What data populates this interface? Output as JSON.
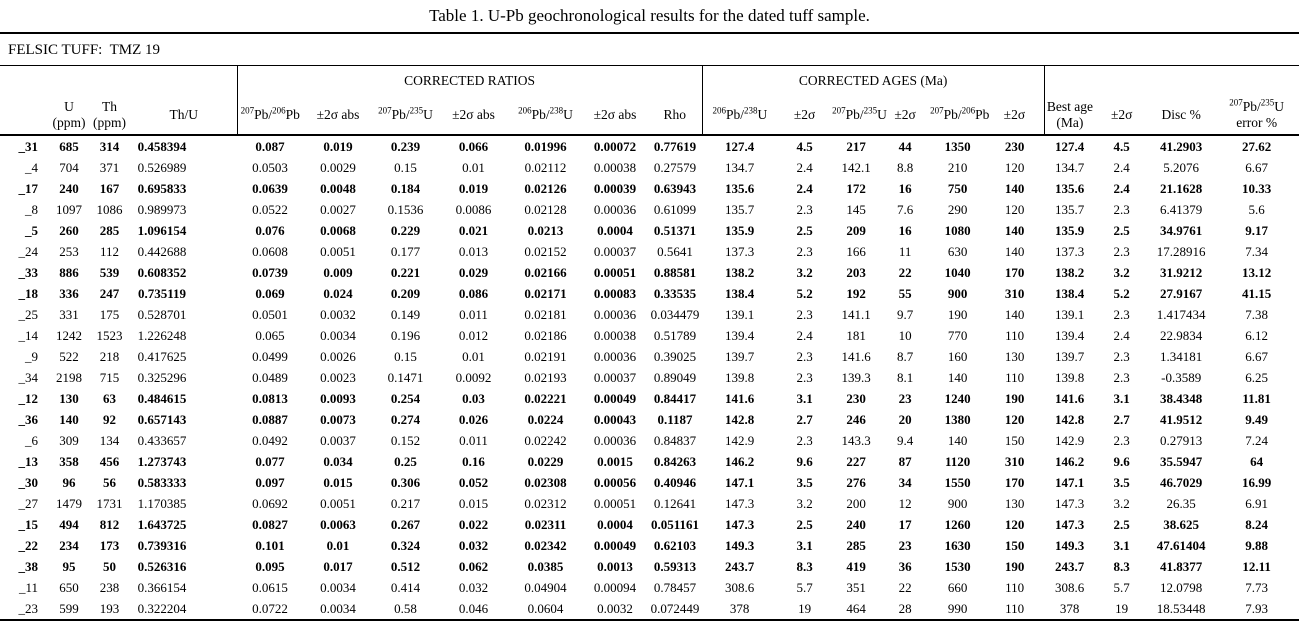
{
  "title": "Table 1. U-Pb geochronological results for the dated tuff sample.",
  "subtitle": "FELSIC TUFF:  TMZ 19",
  "table": {
    "group_headers": {
      "ratios": "CORRECTED RATIOS",
      "ages": "CORRECTED AGES (Ma)"
    },
    "columns": [
      "",
      "U (ppm)",
      "Th (ppm)",
      "Th/U",
      "^{207}Pb/^{206}Pb",
      "±2σ abs",
      "^{207}Pb/^{235}U",
      "±2σ abs",
      "^{206}Pb/^{238}U",
      "±2σ abs",
      "Rho",
      "^{206}Pb/^{238}U",
      "±2σ",
      "^{207}Pb/^{235}U",
      "±2σ",
      "^{207}Pb/^{206}Pb",
      "±2σ",
      "Best age\n(Ma)",
      "±2σ",
      "Disc %",
      "^{207}Pb/^{235}U\nerror %"
    ],
    "rows": [
      {
        "id": "_31",
        "bold": true,
        "values": [
          "685",
          "314",
          "0.458394",
          "0.087",
          "0.019",
          "0.239",
          "0.066",
          "0.01996",
          "0.00072",
          "0.77619",
          "127.4",
          "4.5",
          "217",
          "44",
          "1350",
          "230",
          "127.4",
          "4.5",
          "41.2903",
          "27.62"
        ]
      },
      {
        "id": "_4",
        "bold": false,
        "values": [
          "704",
          "371",
          "0.526989",
          "0.0503",
          "0.0029",
          "0.15",
          "0.01",
          "0.02112",
          "0.00038",
          "0.27579",
          "134.7",
          "2.4",
          "142.1",
          "8.8",
          "210",
          "120",
          "134.7",
          "2.4",
          "5.2076",
          "6.67"
        ]
      },
      {
        "id": "_17",
        "bold": true,
        "values": [
          "240",
          "167",
          "0.695833",
          "0.0639",
          "0.0048",
          "0.184",
          "0.019",
          "0.02126",
          "0.00039",
          "0.63943",
          "135.6",
          "2.4",
          "172",
          "16",
          "750",
          "140",
          "135.6",
          "2.4",
          "21.1628",
          "10.33"
        ]
      },
      {
        "id": "_8",
        "bold": false,
        "values": [
          "1097",
          "1086",
          "0.989973",
          "0.0522",
          "0.0027",
          "0.1536",
          "0.0086",
          "0.02128",
          "0.00036",
          "0.61099",
          "135.7",
          "2.3",
          "145",
          "7.6",
          "290",
          "120",
          "135.7",
          "2.3",
          "6.41379",
          "5.6"
        ]
      },
      {
        "id": "_5",
        "bold": true,
        "values": [
          "260",
          "285",
          "1.096154",
          "0.076",
          "0.0068",
          "0.229",
          "0.021",
          "0.0213",
          "0.0004",
          "0.51371",
          "135.9",
          "2.5",
          "209",
          "16",
          "1080",
          "140",
          "135.9",
          "2.5",
          "34.9761",
          "9.17"
        ]
      },
      {
        "id": "_24",
        "bold": false,
        "values": [
          "253",
          "112",
          "0.442688",
          "0.0608",
          "0.0051",
          "0.177",
          "0.013",
          "0.02152",
          "0.00037",
          "0.5641",
          "137.3",
          "2.3",
          "166",
          "11",
          "630",
          "140",
          "137.3",
          "2.3",
          "17.28916",
          "7.34"
        ]
      },
      {
        "id": "_33",
        "bold": true,
        "values": [
          "886",
          "539",
          "0.608352",
          "0.0739",
          "0.009",
          "0.221",
          "0.029",
          "0.02166",
          "0.00051",
          "0.88581",
          "138.2",
          "3.2",
          "203",
          "22",
          "1040",
          "170",
          "138.2",
          "3.2",
          "31.9212",
          "13.12"
        ]
      },
      {
        "id": "_18",
        "bold": true,
        "values": [
          "336",
          "247",
          "0.735119",
          "0.069",
          "0.024",
          "0.209",
          "0.086",
          "0.02171",
          "0.00083",
          "0.33535",
          "138.4",
          "5.2",
          "192",
          "55",
          "900",
          "310",
          "138.4",
          "5.2",
          "27.9167",
          "41.15"
        ]
      },
      {
        "id": "_25",
        "bold": false,
        "values": [
          "331",
          "175",
          "0.528701",
          "0.0501",
          "0.0032",
          "0.149",
          "0.011",
          "0.02181",
          "0.00036",
          "0.034479",
          "139.1",
          "2.3",
          "141.1",
          "9.7",
          "190",
          "140",
          "139.1",
          "2.3",
          "1.417434",
          "7.38"
        ]
      },
      {
        "id": "_14",
        "bold": false,
        "values": [
          "1242",
          "1523",
          "1.226248",
          "0.065",
          "0.0034",
          "0.196",
          "0.012",
          "0.02186",
          "0.00038",
          "0.51789",
          "139.4",
          "2.4",
          "181",
          "10",
          "770",
          "110",
          "139.4",
          "2.4",
          "22.9834",
          "6.12"
        ]
      },
      {
        "id": "_9",
        "bold": false,
        "values": [
          "522",
          "218",
          "0.417625",
          "0.0499",
          "0.0026",
          "0.15",
          "0.01",
          "0.02191",
          "0.00036",
          "0.39025",
          "139.7",
          "2.3",
          "141.6",
          "8.7",
          "160",
          "130",
          "139.7",
          "2.3",
          "1.34181",
          "6.67"
        ]
      },
      {
        "id": "_34",
        "bold": false,
        "values": [
          "2198",
          "715",
          "0.325296",
          "0.0489",
          "0.0023",
          "0.1471",
          "0.0092",
          "0.02193",
          "0.00037",
          "0.89049",
          "139.8",
          "2.3",
          "139.3",
          "8.1",
          "140",
          "110",
          "139.8",
          "2.3",
          "-0.3589",
          "6.25"
        ]
      },
      {
        "id": "_12",
        "bold": true,
        "values": [
          "130",
          "63",
          "0.484615",
          "0.0813",
          "0.0093",
          "0.254",
          "0.03",
          "0.02221",
          "0.00049",
          "0.84417",
          "141.6",
          "3.1",
          "230",
          "23",
          "1240",
          "190",
          "141.6",
          "3.1",
          "38.4348",
          "11.81"
        ]
      },
      {
        "id": "_36",
        "bold": true,
        "values": [
          "140",
          "92",
          "0.657143",
          "0.0887",
          "0.0073",
          "0.274",
          "0.026",
          "0.0224",
          "0.00043",
          "0.1187",
          "142.8",
          "2.7",
          "246",
          "20",
          "1380",
          "120",
          "142.8",
          "2.7",
          "41.9512",
          "9.49"
        ]
      },
      {
        "id": "_6",
        "bold": false,
        "values": [
          "309",
          "134",
          "0.433657",
          "0.0492",
          "0.0037",
          "0.152",
          "0.011",
          "0.02242",
          "0.00036",
          "0.84837",
          "142.9",
          "2.3",
          "143.3",
          "9.4",
          "140",
          "150",
          "142.9",
          "2.3",
          "0.27913",
          "7.24"
        ]
      },
      {
        "id": "_13",
        "bold": true,
        "values": [
          "358",
          "456",
          "1.273743",
          "0.077",
          "0.034",
          "0.25",
          "0.16",
          "0.0229",
          "0.0015",
          "0.84263",
          "146.2",
          "9.6",
          "227",
          "87",
          "1120",
          "310",
          "146.2",
          "9.6",
          "35.5947",
          "64"
        ]
      },
      {
        "id": "_30",
        "bold": true,
        "values": [
          "96",
          "56",
          "0.583333",
          "0.097",
          "0.015",
          "0.306",
          "0.052",
          "0.02308",
          "0.00056",
          "0.40946",
          "147.1",
          "3.5",
          "276",
          "34",
          "1550",
          "170",
          "147.1",
          "3.5",
          "46.7029",
          "16.99"
        ]
      },
      {
        "id": "_27",
        "bold": false,
        "values": [
          "1479",
          "1731",
          "1.170385",
          "0.0692",
          "0.0051",
          "0.217",
          "0.015",
          "0.02312",
          "0.00051",
          "0.12641",
          "147.3",
          "3.2",
          "200",
          "12",
          "900",
          "130",
          "147.3",
          "3.2",
          "26.35",
          "6.91"
        ]
      },
      {
        "id": "_15",
        "bold": true,
        "values": [
          "494",
          "812",
          "1.643725",
          "0.0827",
          "0.0063",
          "0.267",
          "0.022",
          "0.02311",
          "0.0004",
          "0.051161",
          "147.3",
          "2.5",
          "240",
          "17",
          "1260",
          "120",
          "147.3",
          "2.5",
          "38.625",
          "8.24"
        ]
      },
      {
        "id": "_22",
        "bold": true,
        "values": [
          "234",
          "173",
          "0.739316",
          "0.101",
          "0.01",
          "0.324",
          "0.032",
          "0.02342",
          "0.00049",
          "0.62103",
          "149.3",
          "3.1",
          "285",
          "23",
          "1630",
          "150",
          "149.3",
          "3.1",
          "47.61404",
          "9.88"
        ]
      },
      {
        "id": "_38",
        "bold": true,
        "values": [
          "95",
          "50",
          "0.526316",
          "0.095",
          "0.017",
          "0.512",
          "0.062",
          "0.0385",
          "0.0013",
          "0.59313",
          "243.7",
          "8.3",
          "419",
          "36",
          "1530",
          "190",
          "243.7",
          "8.3",
          "41.8377",
          "12.11"
        ]
      },
      {
        "id": "_11",
        "bold": false,
        "values": [
          "650",
          "238",
          "0.366154",
          "0.0615",
          "0.0034",
          "0.414",
          "0.032",
          "0.04904",
          "0.00094",
          "0.78457",
          "308.6",
          "5.7",
          "351",
          "22",
          "660",
          "110",
          "308.6",
          "5.7",
          "12.0798",
          "7.73"
        ]
      },
      {
        "id": "_23",
        "bold": false,
        "values": [
          "599",
          "193",
          "0.322204",
          "0.0722",
          "0.0034",
          "0.58",
          "0.046",
          "0.0604",
          "0.0032",
          "0.072449",
          "378",
          "19",
          "464",
          "28",
          "990",
          "110",
          "378",
          "19",
          "18.53448",
          "7.93"
        ]
      }
    ]
  }
}
